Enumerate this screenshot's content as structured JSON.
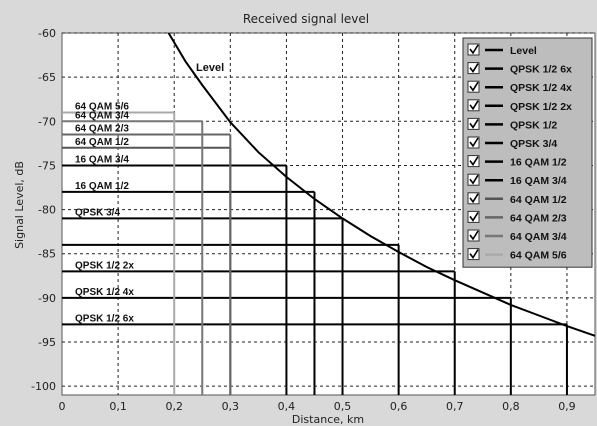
{
  "chart_data": {
    "type": "line",
    "title": "Received signal level",
    "xlabel": "Distance, km",
    "ylabel": "Signal Level, dB",
    "xlim": [
      0,
      0.95
    ],
    "ylim": [
      -101,
      -60
    ],
    "x_ticks": [
      0,
      0.1,
      0.2,
      0.3,
      0.4,
      0.5,
      0.6,
      0.7,
      0.8,
      0.9
    ],
    "x_tick_labels": [
      "0",
      "0,1",
      "0,2",
      "0,3",
      "0,4",
      "0,5",
      "0,6",
      "0,7",
      "0,8",
      "0,9"
    ],
    "y_ticks": [
      -100,
      -95,
      -90,
      -85,
      -80,
      -75,
      -70,
      -65,
      -60
    ],
    "y_tick_labels": [
      "-100",
      "-95",
      "-90",
      "-85",
      "-80",
      "-75",
      "-70",
      "-65",
      "-60"
    ],
    "grid": true,
    "legend_position": "right",
    "series": [
      {
        "name": "Level",
        "x": [
          0.19,
          0.22,
          0.25,
          0.3,
          0.35,
          0.4,
          0.45,
          0.5,
          0.55,
          0.6,
          0.65,
          0.7,
          0.75,
          0.8,
          0.85,
          0.9,
          0.95
        ],
        "y": [
          -60,
          -63.2,
          -65.9,
          -70.1,
          -73.5,
          -76.3,
          -78.8,
          -81.0,
          -83.0,
          -84.8,
          -86.5,
          -88.0,
          -89.4,
          -90.8,
          -92.0,
          -93.2,
          -94.3
        ],
        "color": "#000000"
      }
    ],
    "thresholds": [
      {
        "name": "QPSK 1/2 6x",
        "label": "QPSK 1/2 6x",
        "level": -93,
        "distance": 0.9,
        "color": "#000000"
      },
      {
        "name": "QPSK 1/2 4x",
        "label": "QPSK 1/2 4x",
        "level": -90,
        "distance": 0.8,
        "color": "#000000"
      },
      {
        "name": "QPSK 1/2 2x",
        "label": "QPSK 1/2 2x",
        "level": -87,
        "distance": 0.7,
        "color": "#000000"
      },
      {
        "name": "QPSK 1/2",
        "label": "",
        "level": -84,
        "distance": 0.6,
        "color": "#000000"
      },
      {
        "name": "QPSK 3/4",
        "label": "QPSK 3/4",
        "level": -81,
        "distance": 0.5,
        "color": "#000000"
      },
      {
        "name": "16 QAM 1/2",
        "label": "16 QAM 1/2",
        "level": -78,
        "distance": 0.45,
        "color": "#000000"
      },
      {
        "name": "16 QAM 3/4",
        "label": "16 QAM 3/4",
        "level": -75,
        "distance": 0.4,
        "color": "#000000"
      },
      {
        "name": "64 QAM 1/2",
        "label": "64 QAM 1/2",
        "level": -73,
        "distance": 0.3,
        "color": "#555555"
      },
      {
        "name": "64 QAM 2/3",
        "label": "64 QAM 2/3",
        "level": -71.5,
        "distance": 0.3,
        "color": "#666666"
      },
      {
        "name": "64 QAM 3/4",
        "label": "64 QAM 3/4",
        "level": -70,
        "distance": 0.25,
        "color": "#777777"
      },
      {
        "name": "64 QAM 5/6",
        "label": "64 QAM 5/6",
        "level": -69,
        "distance": 0.2,
        "color": "#aaaaaa"
      }
    ],
    "region_label_list": [
      "64 QAM 5/6",
      "64 QAM 3/4",
      "64 QAM 2/3",
      "64 QAM 1/2",
      "16 QAM 3/4",
      "16 QAM 1/2",
      "QPSK 3/4",
      "QPSK 1/2 2x",
      "QPSK 1/2 4x",
      "QPSK 1/2 6x"
    ],
    "annotation": "Level",
    "legend": [
      {
        "name": "Level",
        "color": "#000000"
      },
      {
        "name": "QPSK 1/2 6x",
        "color": "#000000"
      },
      {
        "name": "QPSK 1/2 4x",
        "color": "#000000"
      },
      {
        "name": "QPSK 1/2 2x",
        "color": "#000000"
      },
      {
        "name": "QPSK 1/2",
        "color": "#000000"
      },
      {
        "name": "QPSK 3/4",
        "color": "#000000"
      },
      {
        "name": "16 QAM 1/2",
        "color": "#000000"
      },
      {
        "name": "16 QAM 3/4",
        "color": "#000000"
      },
      {
        "name": "64 QAM 1/2",
        "color": "#555555"
      },
      {
        "name": "64 QAM 2/3",
        "color": "#666666"
      },
      {
        "name": "64 QAM 3/4",
        "color": "#777777"
      },
      {
        "name": "64 QAM 5/6",
        "color": "#aaaaaa"
      }
    ]
  }
}
